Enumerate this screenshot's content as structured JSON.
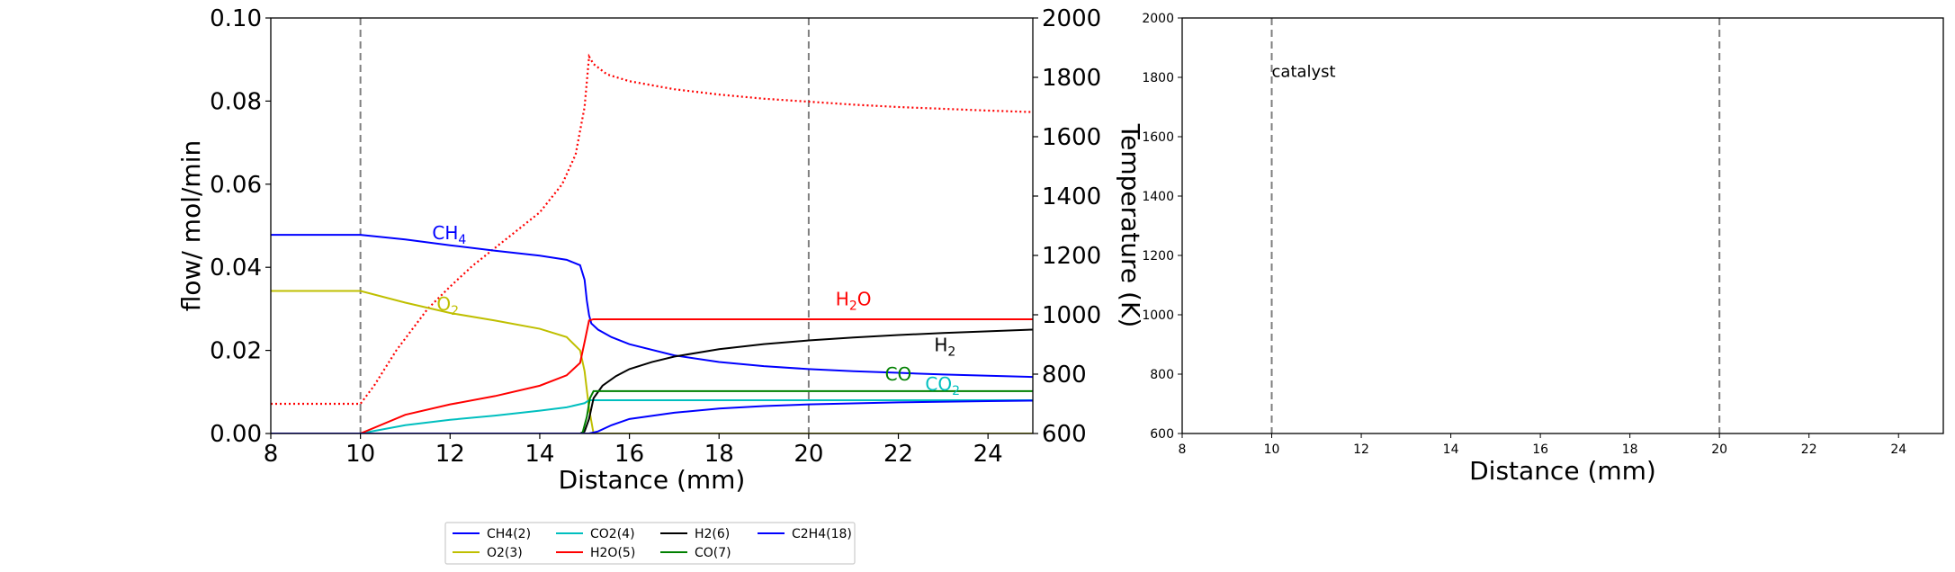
{
  "chart_data": [
    {
      "type": "line",
      "xlabel": "Distance (mm)",
      "ylabel": "flow/ mol/min",
      "y2label": "Temperature (K)",
      "xlim": [
        8,
        25
      ],
      "ylim": [
        0,
        0.1
      ],
      "y2lim": [
        600,
        2000
      ],
      "xticks": [
        "8",
        "10",
        "12",
        "14",
        "16",
        "18",
        "20",
        "22",
        "24"
      ],
      "yticks": [
        "0.00",
        "0.02",
        "0.04",
        "0.06",
        "0.08",
        "0.10"
      ],
      "y2ticks": [
        "600",
        "800",
        "1000",
        "1200",
        "1400",
        "1600",
        "1800",
        "2000"
      ],
      "grid": false,
      "vlines": [
        10,
        20
      ],
      "series": [
        {
          "name": "CH4(2)",
          "color": "#0000ff",
          "x": [
            8,
            10,
            11,
            12,
            13,
            14,
            14.6,
            14.9,
            15.0,
            15.05,
            15.1,
            15.15,
            15.3,
            15.6,
            16,
            17,
            18,
            19,
            20,
            21,
            22,
            23,
            24,
            25
          ],
          "y": [
            0.0478,
            0.0478,
            0.0467,
            0.0453,
            0.044,
            0.0428,
            0.0418,
            0.0405,
            0.037,
            0.032,
            0.0285,
            0.0265,
            0.025,
            0.0232,
            0.0215,
            0.0188,
            0.0172,
            0.0162,
            0.0155,
            0.015,
            0.0146,
            0.0142,
            0.0139,
            0.0136
          ]
        },
        {
          "name": "O2(3)",
          "color": "#bfbf00",
          "x": [
            8,
            10,
            11,
            12,
            13,
            14,
            14.6,
            14.9,
            15.0,
            15.1,
            15.2,
            25
          ],
          "y": [
            0.0343,
            0.0343,
            0.0315,
            0.029,
            0.0272,
            0.0252,
            0.0232,
            0.02,
            0.015,
            0.006,
            0.0,
            0.0
          ]
        },
        {
          "name": "CO2(4)",
          "color": "#00bfbf",
          "x": [
            8,
            10,
            11,
            12,
            13,
            14,
            14.6,
            15.0,
            15.1,
            25
          ],
          "y": [
            0,
            0,
            0.002,
            0.0033,
            0.0043,
            0.0055,
            0.0063,
            0.0073,
            0.008,
            0.008
          ]
        },
        {
          "name": "H2O(5)",
          "color": "#ff0000",
          "x": [
            8,
            10,
            11,
            12,
            13,
            14,
            14.6,
            14.9,
            15.0,
            15.1,
            15.2,
            25
          ],
          "y": [
            0,
            0,
            0.0045,
            0.007,
            0.009,
            0.0115,
            0.014,
            0.017,
            0.022,
            0.0272,
            0.0275,
            0.0275
          ]
        },
        {
          "name": "H2(6)",
          "color": "#000000",
          "x": [
            8,
            14.9,
            15.0,
            15.1,
            15.2,
            15.4,
            15.7,
            16,
            16.5,
            17,
            18,
            19,
            20,
            21,
            22,
            23,
            24,
            25
          ],
          "y": [
            0,
            0,
            0.0005,
            0.0035,
            0.0085,
            0.0115,
            0.0138,
            0.0155,
            0.0172,
            0.0185,
            0.0203,
            0.0215,
            0.0224,
            0.0231,
            0.0237,
            0.0242,
            0.0246,
            0.025
          ]
        },
        {
          "name": "CO(7)",
          "color": "#008000",
          "x": [
            8,
            14.95,
            15.05,
            15.12,
            15.2,
            25
          ],
          "y": [
            0,
            0,
            0.004,
            0.0085,
            0.0102,
            0.0102
          ]
        },
        {
          "name": "C2H4(18)",
          "color": "#0000ff",
          "x": [
            8,
            15.1,
            15.3,
            15.6,
            16,
            17,
            18,
            19,
            20,
            22,
            24,
            25
          ],
          "y": [
            0,
            0,
            0.0005,
            0.002,
            0.0035,
            0.005,
            0.006,
            0.0066,
            0.007,
            0.0075,
            0.0078,
            0.0079
          ]
        }
      ],
      "temperature_series": {
        "color": "#ff0000",
        "style": "dotted",
        "axis": "right",
        "x": [
          8,
          10,
          10.3,
          10.8,
          11.5,
          12,
          12.5,
          13,
          13.5,
          14,
          14.5,
          14.8,
          15.0,
          15.1,
          15.2,
          15.5,
          16,
          17,
          18,
          19,
          20,
          21,
          22,
          23,
          24,
          25
        ],
        "y": [
          700,
          700,
          760,
          880,
          1020,
          1095,
          1165,
          1225,
          1285,
          1345,
          1440,
          1540,
          1700,
          1870,
          1845,
          1810,
          1787,
          1760,
          1742,
          1728,
          1718,
          1708,
          1700,
          1694,
          1688,
          1683
        ]
      },
      "annotations": [
        {
          "text": "CH",
          "sub": "4",
          "x": 11.6,
          "y": 0.0468,
          "color": "#0000ff"
        },
        {
          "text": "O",
          "sub": "2",
          "x": 11.7,
          "y": 0.0297,
          "color": "#bfbf00"
        },
        {
          "text": "H",
          "sub": "2",
          "after": "O",
          "x": 20.6,
          "y": 0.0308,
          "color": "#ff0000"
        },
        {
          "text": "H",
          "sub": "2",
          "x": 22.8,
          "y": 0.0198,
          "color": "#000000"
        },
        {
          "text": "CO",
          "sub": "",
          "x": 21.7,
          "y": 0.0128,
          "color": "#008000"
        },
        {
          "text": "CO",
          "sub": "2",
          "x": 22.6,
          "y": 0.0104,
          "color": "#00bfbf"
        }
      ],
      "legend_position": "below"
    },
    {
      "type": "line",
      "xlabel": "Distance (mm)",
      "xlim": [
        8,
        25
      ],
      "ylim": [
        600,
        2000
      ],
      "xticks": [
        "8",
        "10",
        "12",
        "14",
        "16",
        "18",
        "20",
        "22",
        "24"
      ],
      "yticks": [
        "600",
        "800",
        "1000",
        "1200",
        "1400",
        "1600",
        "1800",
        "2000"
      ],
      "grid": false,
      "vlines": [
        10,
        20
      ],
      "annotations": [
        {
          "text": "catalyst",
          "x": 10,
          "y": 1820,
          "color": "#000000"
        }
      ],
      "series": []
    }
  ]
}
